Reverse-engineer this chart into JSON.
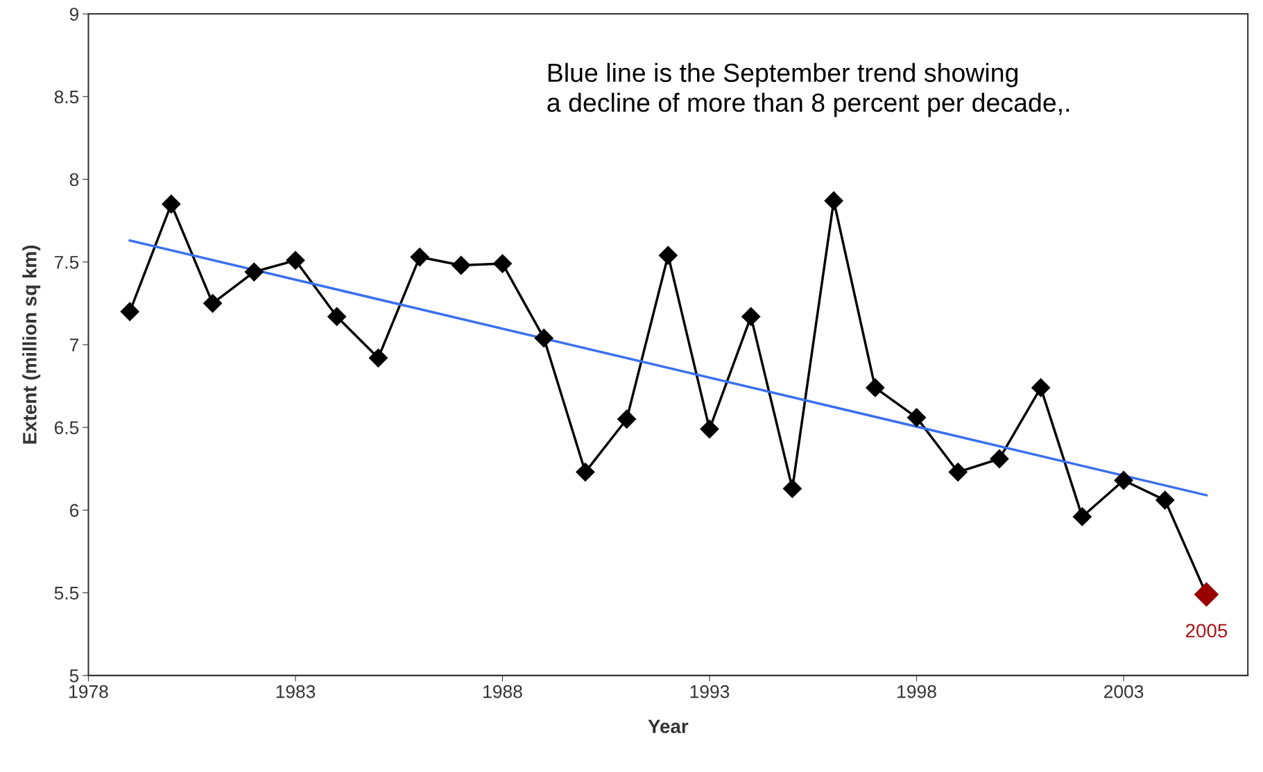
{
  "chart_data": {
    "type": "line",
    "xlabel": "Year",
    "ylabel": "Extent (million sq km)",
    "xlim": [
      1978,
      2006
    ],
    "xticks": [
      1978,
      1983,
      1988,
      1993,
      1998,
      2003
    ],
    "ylim": [
      5,
      9
    ],
    "yticks": [
      5,
      5.5,
      6,
      6.5,
      7,
      7.5,
      8,
      8.5,
      9
    ],
    "grid": false,
    "legend": false,
    "series": [
      {
        "marker": "diamond",
        "color": "#000000",
        "x": [
          1979,
          1980,
          1981,
          1982,
          1983,
          1984,
          1985,
          1986,
          1987,
          1988,
          1989,
          1990,
          1991,
          1992,
          1993,
          1994,
          1995,
          1996,
          1997,
          1998,
          1999,
          2000,
          2001,
          2002,
          2003,
          2004,
          2005
        ],
        "values": [
          7.2,
          7.85,
          7.25,
          7.44,
          7.51,
          7.17,
          6.92,
          7.53,
          7.48,
          7.49,
          7.04,
          6.23,
          6.55,
          7.54,
          6.49,
          7.17,
          6.13,
          7.87,
          6.74,
          6.56,
          6.23,
          6.31,
          6.74,
          5.96,
          6.18,
          6.06,
          5.49
        ],
        "colors": [
          "#000000",
          "#000000",
          "#000000",
          "#000000",
          "#000000",
          "#000000",
          "#000000",
          "#000000",
          "#000000",
          "#000000",
          "#000000",
          "#000000",
          "#000000",
          "#000000",
          "#000000",
          "#000000",
          "#000000",
          "#000000",
          "#000000",
          "#000000",
          "#000000",
          "#000000",
          "#000000",
          "#000000",
          "#000000",
          "#000000",
          "#990000"
        ]
      },
      {
        "marker": "none",
        "color": "#3a6ff0",
        "x": [
          1979,
          2005
        ],
        "values": [
          7.63,
          6.09
        ]
      }
    ],
    "annotations": [
      {
        "text": "Blue line is the September trend showing\na decline of more than 8 percent per decade,."
      },
      {
        "text": "2005",
        "x": 2005,
        "y": 5.49
      }
    ]
  }
}
